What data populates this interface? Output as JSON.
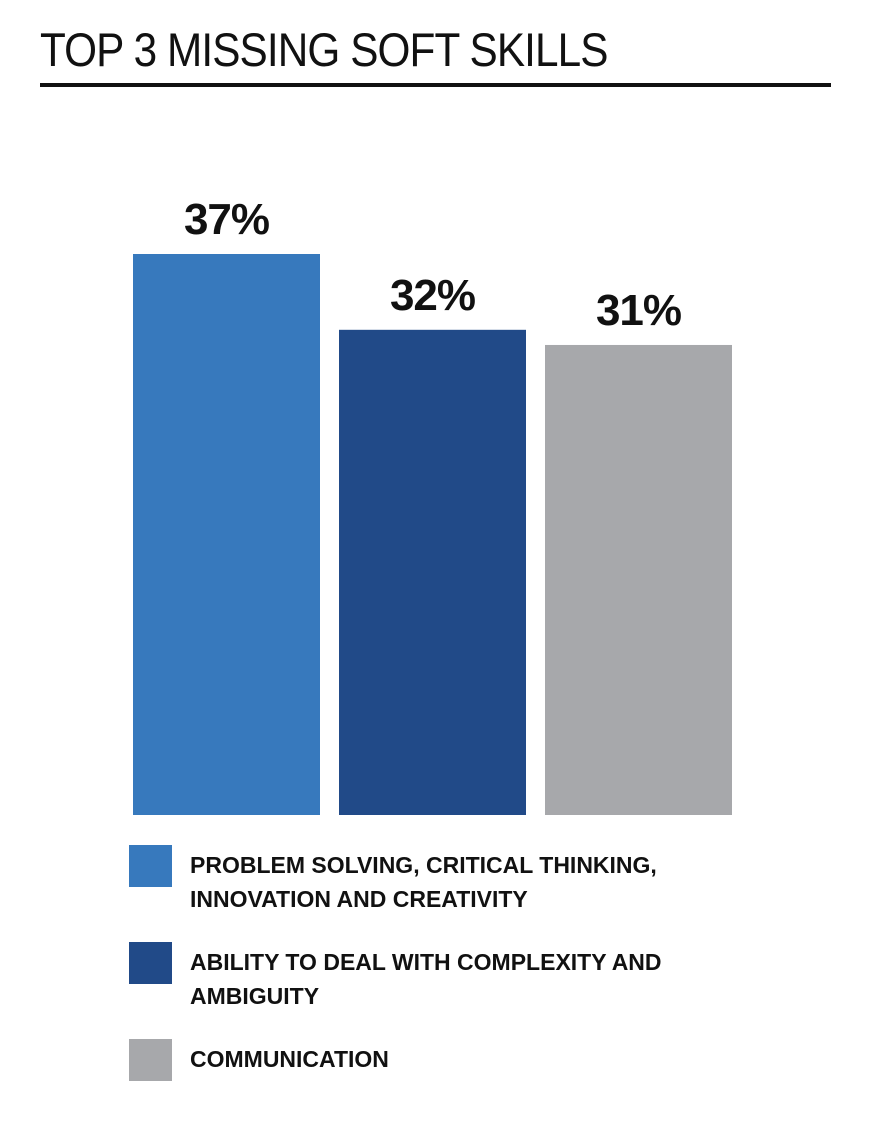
{
  "header": {
    "title": "TOP 3 MISSING SOFT SKILLS"
  },
  "chart_data": {
    "type": "bar",
    "title": "TOP 3 MISSING SOFT SKILLS",
    "xlabel": "",
    "ylabel": "",
    "ylim": [
      0,
      37
    ],
    "grid": false,
    "legend_position": "bottom",
    "categories": [
      "PROBLEM SOLVING, CRITICAL THINKING, INNOVATION AND CREATIVITY",
      "ABILITY TO DEAL WITH COMPLEXITY AND AMBIGUITY",
      "COMMUNICATION"
    ],
    "values": [
      37,
      32,
      31
    ],
    "value_labels": [
      "37%",
      "32%",
      "31%"
    ],
    "colors": [
      "#3779bd",
      "#214a88",
      "#a7a8ab"
    ]
  },
  "legend": {
    "items": [
      {
        "label": "PROBLEM SOLVING, CRITICAL THINKING, INNOVATION AND CREATIVITY",
        "color": "#3779bd"
      },
      {
        "label": "ABILITY TO DEAL WITH COMPLEXITY AND AMBIGUITY",
        "color": "#214a88"
      },
      {
        "label": "COMMUNICATION",
        "color": "#a7a8ab"
      }
    ]
  }
}
